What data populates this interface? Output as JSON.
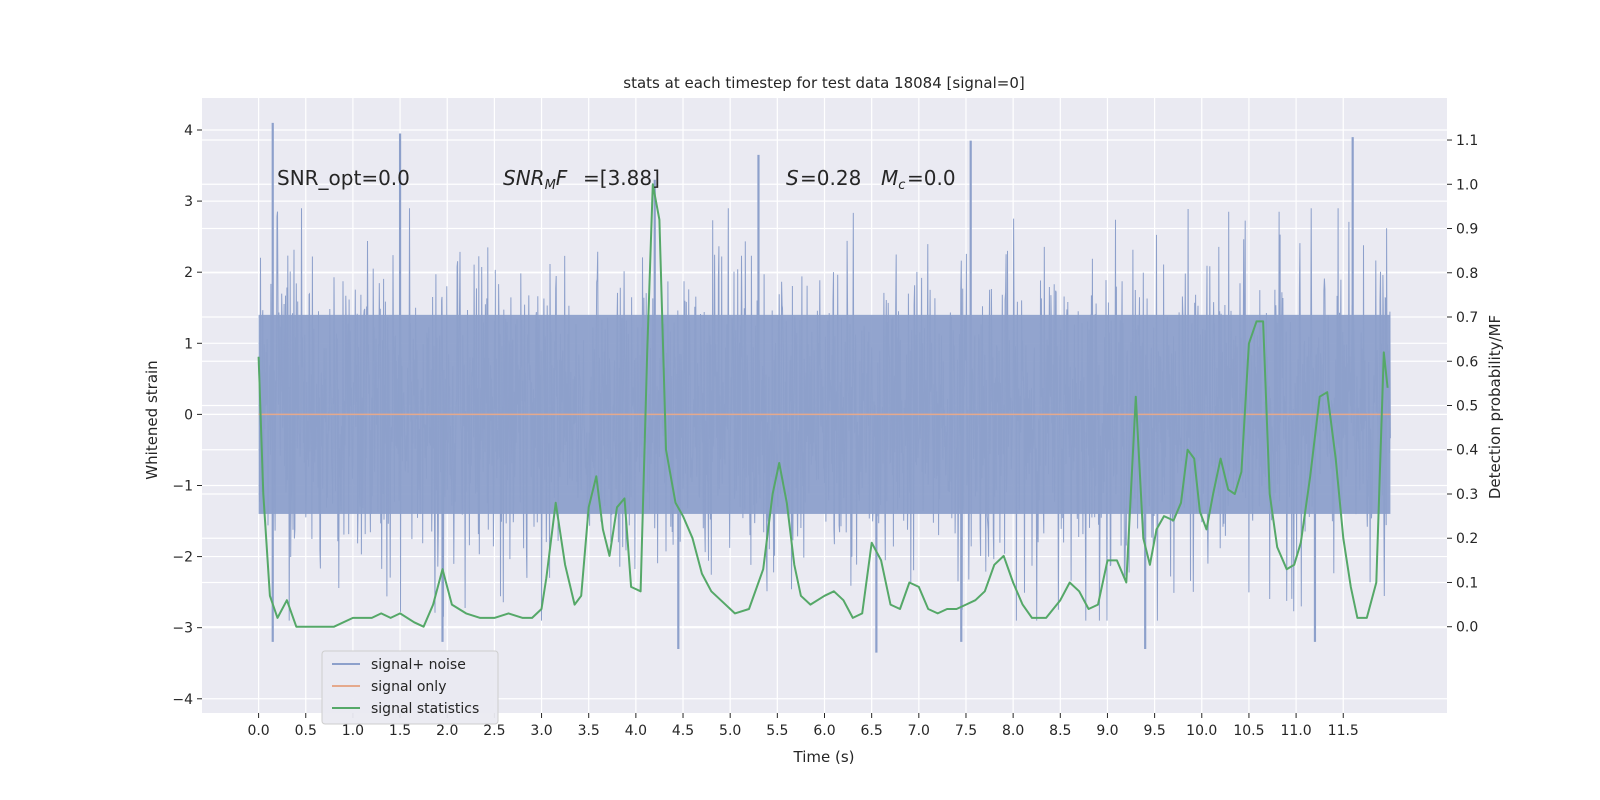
{
  "chart_data": {
    "type": "line",
    "title": "stats at each timestep for test data 18084 [signal=0]",
    "xlabel": "Time (s)",
    "ylabel": "Whitened strain",
    "y2label": "Detection probability/MF",
    "xlim": [
      -0.6,
      12.6
    ],
    "ylim": [
      -4.2,
      4.45
    ],
    "y2lim": [
      -0.195,
      1.195
    ],
    "grid": true,
    "legend_position": "lower-left",
    "x_ticks": [
      "0.0",
      "0.5",
      "1.0",
      "1.5",
      "2.0",
      "2.5",
      "3.0",
      "3.5",
      "4.0",
      "4.5",
      "5.0",
      "5.5",
      "6.0",
      "6.5",
      "7.0",
      "7.5",
      "8.0",
      "8.5",
      "9.0",
      "9.5",
      "10.0",
      "10.5",
      "11.0",
      "11.5"
    ],
    "y_ticks": [
      "4",
      "3",
      "2",
      "1",
      "0",
      "−1",
      "−2",
      "−3",
      "−4"
    ],
    "y2_ticks": [
      "1.1",
      "1.0",
      "0.9",
      "0.8",
      "0.7",
      "0.6",
      "0.5",
      "0.4",
      "0.3",
      "0.2",
      "0.1",
      "0.0"
    ],
    "annotations": {
      "snr_opt": "SNR_opt=0.0",
      "snr_mf": "[3.88]",
      "s_stat": "=0.28",
      "mc": "=0.0"
    },
    "series": [
      {
        "name": "signal+ noise",
        "color": "#8da0cb",
        "style": "dense noise, envelope approx",
        "x_range": [
          0.0,
          12.0
        ],
        "core_range": [
          -1.4,
          1.4
        ],
        "spike_peaks": [
          [
            0.15,
            4.1
          ],
          [
            1.5,
            3.95
          ],
          [
            4.2,
            3.3
          ],
          [
            5.3,
            3.65
          ],
          [
            7.55,
            3.85
          ],
          [
            11.6,
            3.9
          ],
          [
            0.15,
            -3.2
          ],
          [
            1.95,
            -3.2
          ],
          [
            4.45,
            -3.3
          ],
          [
            6.55,
            -3.35
          ],
          [
            7.45,
            -3.2
          ],
          [
            9.4,
            -3.3
          ],
          [
            11.2,
            -3.2
          ]
        ]
      },
      {
        "name": "signal only",
        "color": "#e5a98c",
        "y": 0.0,
        "x_range": [
          0.0,
          12.0
        ]
      },
      {
        "name": "signal statistics",
        "color": "#55a868",
        "axis": "right",
        "x": [
          0.0,
          0.05,
          0.12,
          0.2,
          0.3,
          0.4,
          0.5,
          0.65,
          0.8,
          1.0,
          1.1,
          1.2,
          1.3,
          1.4,
          1.5,
          1.65,
          1.75,
          1.85,
          1.95,
          2.05,
          2.2,
          2.35,
          2.5,
          2.65,
          2.8,
          2.9,
          3.0,
          3.05,
          3.15,
          3.25,
          3.35,
          3.42,
          3.5,
          3.58,
          3.65,
          3.72,
          3.8,
          3.88,
          3.95,
          4.05,
          4.12,
          4.18,
          4.25,
          4.32,
          4.42,
          4.5,
          4.6,
          4.7,
          4.8,
          4.9,
          5.05,
          5.2,
          5.35,
          5.45,
          5.52,
          5.6,
          5.68,
          5.75,
          5.85,
          6.0,
          6.1,
          6.2,
          6.3,
          6.4,
          6.5,
          6.6,
          6.7,
          6.8,
          6.9,
          7.0,
          7.1,
          7.2,
          7.3,
          7.4,
          7.5,
          7.6,
          7.7,
          7.8,
          7.9,
          8.0,
          8.1,
          8.2,
          8.35,
          8.5,
          8.6,
          8.7,
          8.8,
          8.9,
          9.0,
          9.1,
          9.2,
          9.3,
          9.38,
          9.45,
          9.52,
          9.6,
          9.7,
          9.78,
          9.85,
          9.92,
          9.98,
          10.05,
          10.12,
          10.2,
          10.28,
          10.35,
          10.42,
          10.5,
          10.58,
          10.65,
          10.72,
          10.8,
          10.9,
          10.98,
          11.05,
          11.15,
          11.25,
          11.33,
          11.42,
          11.5,
          11.58,
          11.65,
          11.75,
          11.85,
          11.93,
          11.97
        ],
        "y": [
          0.61,
          0.3,
          0.07,
          0.02,
          0.06,
          0.0,
          0.0,
          0.0,
          0.0,
          0.02,
          0.02,
          0.02,
          0.03,
          0.02,
          0.03,
          0.01,
          0.0,
          0.05,
          0.13,
          0.05,
          0.03,
          0.02,
          0.02,
          0.03,
          0.02,
          0.02,
          0.04,
          0.11,
          0.28,
          0.14,
          0.05,
          0.07,
          0.27,
          0.34,
          0.22,
          0.16,
          0.27,
          0.29,
          0.09,
          0.08,
          0.62,
          1.0,
          0.92,
          0.4,
          0.28,
          0.25,
          0.2,
          0.12,
          0.08,
          0.06,
          0.03,
          0.04,
          0.13,
          0.3,
          0.37,
          0.28,
          0.14,
          0.07,
          0.05,
          0.07,
          0.08,
          0.06,
          0.02,
          0.03,
          0.19,
          0.15,
          0.05,
          0.04,
          0.1,
          0.09,
          0.04,
          0.03,
          0.04,
          0.04,
          0.05,
          0.06,
          0.08,
          0.14,
          0.16,
          0.1,
          0.05,
          0.02,
          0.02,
          0.06,
          0.1,
          0.08,
          0.04,
          0.05,
          0.15,
          0.15,
          0.1,
          0.52,
          0.2,
          0.14,
          0.22,
          0.25,
          0.24,
          0.28,
          0.4,
          0.38,
          0.26,
          0.22,
          0.3,
          0.38,
          0.31,
          0.3,
          0.35,
          0.64,
          0.69,
          0.69,
          0.3,
          0.18,
          0.13,
          0.14,
          0.19,
          0.34,
          0.52,
          0.53,
          0.38,
          0.2,
          0.09,
          0.02,
          0.02,
          0.1,
          0.62,
          0.54
        ]
      }
    ]
  }
}
